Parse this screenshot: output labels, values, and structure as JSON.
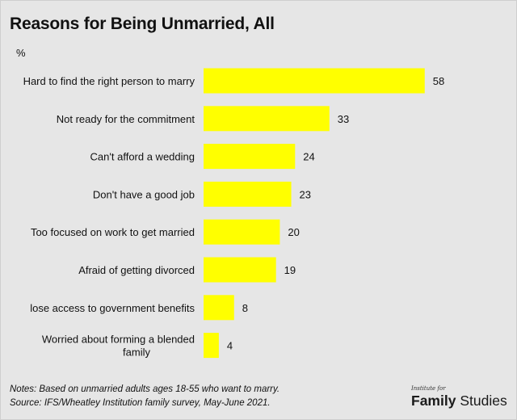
{
  "title": "Reasons for Being Unmarried, All",
  "unit_label": "%",
  "notes": [
    "Notes: Based on unmarried adults ages 18-55 who want to marry.",
    "Source: IFS/Wheatley Institution family survey, May-June 2021."
  ],
  "logo": {
    "small": "Institute for",
    "word1": "Family",
    "word2": "Studies"
  },
  "colors": {
    "bar": "#ffff00",
    "background": "#e6e6e6",
    "text": "#111111"
  },
  "chart_data": {
    "type": "bar",
    "orientation": "horizontal",
    "title": "Reasons for Being Unmarried, All",
    "categories": [
      [
        "Hard to find the right person to marry"
      ],
      [
        "Not ready for the commitment"
      ],
      [
        "Can't afford a wedding"
      ],
      [
        "Don't have a good job"
      ],
      [
        "Too focused on work to get married"
      ],
      [
        "Afraid of getting divorced"
      ],
      [
        "lose access to government benefits"
      ],
      [
        "Worried about forming a blended",
        "family"
      ]
    ],
    "values": [
      58,
      33,
      24,
      23,
      20,
      19,
      8,
      4
    ],
    "data_labels": true,
    "grid": false,
    "legend": false
  }
}
